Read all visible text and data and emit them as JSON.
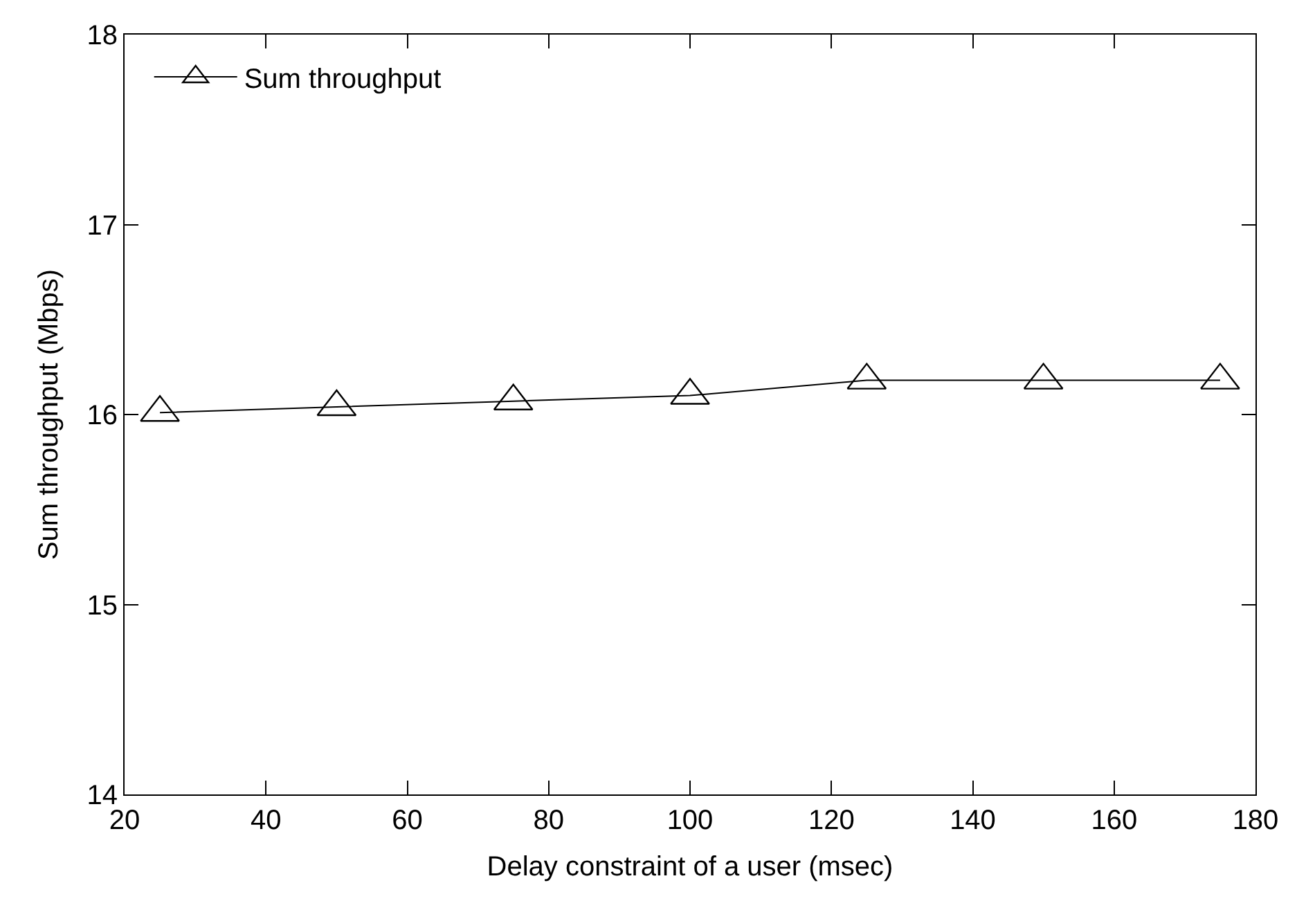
{
  "chart_data": {
    "type": "line",
    "xlabel": "Delay constraint of a user (msec)",
    "ylabel": "Sum throughput (Mbps)",
    "x": [
      25,
      50,
      75,
      100,
      125,
      150,
      175
    ],
    "series": [
      {
        "name": "Sum throughput",
        "color": "#000000",
        "values": [
          16.01,
          16.04,
          16.07,
          16.1,
          16.18,
          16.18,
          16.18
        ]
      }
    ],
    "xlim": [
      20,
      180
    ],
    "xticks": [
      20,
      40,
      60,
      80,
      100,
      120,
      140,
      160,
      180
    ],
    "ylim": [
      14,
      18
    ],
    "yticks": [
      14,
      15,
      16,
      17,
      18
    ],
    "marker": "triangle",
    "line_style": "solid",
    "legend": "top left"
  }
}
